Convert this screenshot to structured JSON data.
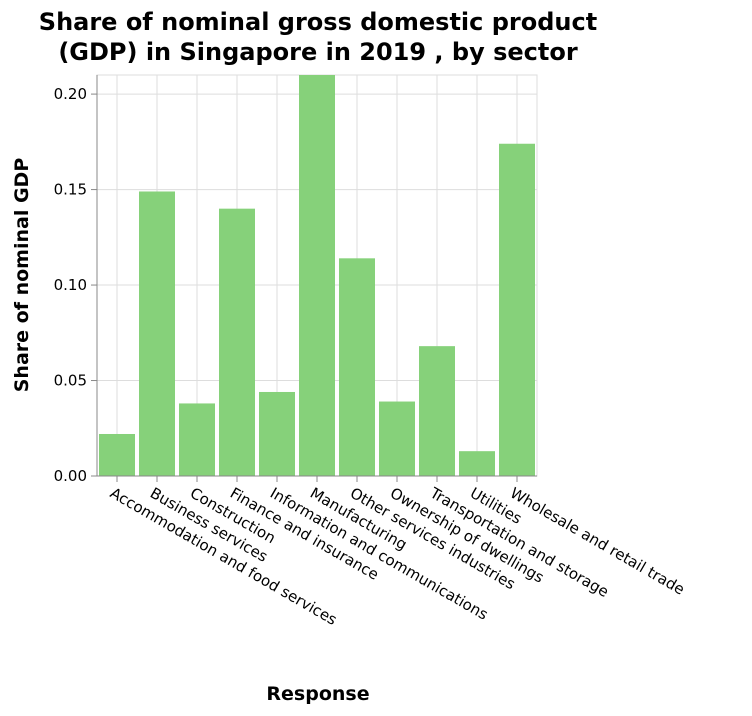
{
  "chart_data": {
    "type": "bar",
    "title_lines": [
      "Share of nominal gross domestic product",
      "(GDP) in Singapore in 2019 , by sector"
    ],
    "xlabel": "Response",
    "ylabel": "Share of nominal GDP",
    "categories": [
      "Accommodation and food services",
      "Business services",
      "Construction",
      "Finance and insurance",
      "Information and communications",
      "Manufacturing",
      "Other services industries",
      "Ownership of dwellings",
      "Transportation and storage",
      "Utilities",
      "Wholesale and retail trade"
    ],
    "values": [
      0.022,
      0.149,
      0.038,
      0.14,
      0.044,
      0.21,
      0.114,
      0.039,
      0.068,
      0.013,
      0.174
    ],
    "ylim": [
      0,
      0.21
    ],
    "yticks": [
      0.0,
      0.05,
      0.1,
      0.15,
      0.2
    ],
    "ytick_labels": [
      "0.00",
      "0.05",
      "0.10",
      "0.15",
      "0.20"
    ],
    "grid": true,
    "legend": "none",
    "bar_color": "#86d17a",
    "grid_color": "#dddddd",
    "axis_color": "#888888"
  }
}
